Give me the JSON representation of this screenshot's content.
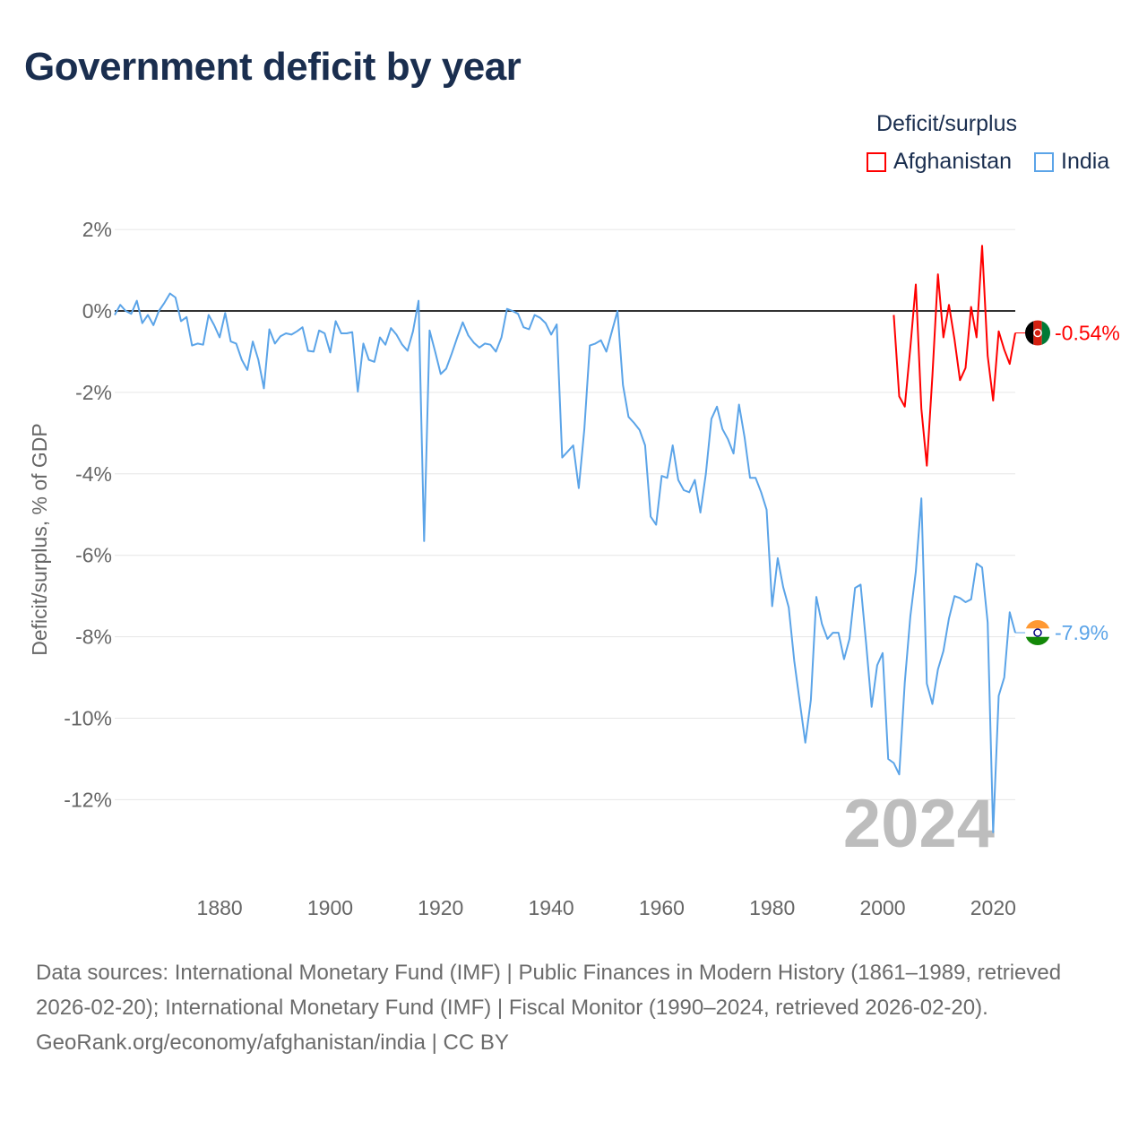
{
  "title": "Government deficit by year",
  "legend": {
    "title": "Deficit/surplus",
    "entries": [
      {
        "name": "Afghanistan",
        "color": "#ff0000"
      },
      {
        "name": "India",
        "color": "#5ba4e8"
      }
    ]
  },
  "footer": {
    "sources": "Data sources: International Monetary Fund (IMF) | Public Finances in Modern History (1861–1989, retrieved 2026-02-20); International Monetary Fund (IMF) | Fiscal Monitor (1990–2024, retrieved 2026-02-20).",
    "credit": "GeoRank.org/economy/afghanistan/india | CC BY"
  },
  "chart_data": {
    "type": "line",
    "title": "Government deficit by year",
    "xlabel": "",
    "ylabel": "Deficit/surplus, % of GDP",
    "xlim": [
      1861,
      2024
    ],
    "ylim": [
      -13,
      2.4
    ],
    "x_ticks": [
      1880,
      1900,
      1920,
      1940,
      1960,
      1980,
      2000,
      2020
    ],
    "x_tick_labels": [
      "1880",
      "1900",
      "1920",
      "1940",
      "1960",
      "1980",
      "2000",
      "2020"
    ],
    "y_ticks": [
      2,
      0,
      -2,
      -4,
      -6,
      -8,
      -10,
      -12
    ],
    "y_tick_labels": [
      "2%",
      "0%",
      "-2%",
      "-4%",
      "-6%",
      "-8%",
      "-10%",
      "-12%"
    ],
    "grid": true,
    "legend_position": "top-right",
    "year_watermark": "2024",
    "series": [
      {
        "name": "India",
        "color": "#5ba4e8",
        "start_year": 1861,
        "end_label": "-7.9%",
        "values": [
          -0.1,
          0.15,
          0,
          -0.07,
          0.25,
          -0.3,
          -0.1,
          -0.35,
          0,
          0.2,
          0.43,
          0.33,
          -0.25,
          -0.15,
          -0.85,
          -0.8,
          -0.83,
          -0.1,
          -0.35,
          -0.65,
          -0.05,
          -0.75,
          -0.8,
          -1.2,
          -1.45,
          -0.75,
          -1.2,
          -1.9,
          -0.45,
          -0.8,
          -0.62,
          -0.55,
          -0.58,
          -0.5,
          -0.4,
          -0.98,
          -1.0,
          -0.48,
          -0.55,
          -1.02,
          -0.25,
          -0.55,
          -0.55,
          -0.52,
          -1.98,
          -0.8,
          -1.2,
          -1.25,
          -0.65,
          -0.83,
          -0.42,
          -0.58,
          -0.82,
          -0.98,
          -0.5,
          0.25,
          -5.65,
          -0.48,
          -1.0,
          -1.55,
          -1.42,
          -1.05,
          -0.65,
          -0.28,
          -0.6,
          -0.78,
          -0.9,
          -0.8,
          -0.83,
          -1.0,
          -0.65,
          0.05,
          0,
          -0.07,
          -0.4,
          -0.45,
          -0.1,
          -0.17,
          -0.3,
          -0.58,
          -0.33,
          -3.6,
          -3.45,
          -3.3,
          -4.35,
          -2.9,
          -0.85,
          -0.8,
          -0.72,
          -1.0,
          -0.5,
          0,
          -1.82,
          -2.6,
          -2.75,
          -2.92,
          -3.3,
          -5.05,
          -5.25,
          -4.05,
          -4.1,
          -3.3,
          -4.15,
          -4.4,
          -4.45,
          -4.15,
          -4.95,
          -4.0,
          -2.65,
          -2.35,
          -2.9,
          -3.15,
          -3.5,
          -2.3,
          -3.1,
          -4.1,
          -4.1,
          -4.45,
          -4.88,
          -7.25,
          -6.07,
          -6.78,
          -7.28,
          -8.6,
          -9.6,
          -10.6,
          -9.55,
          -7.02,
          -7.68,
          -8.05,
          -7.9,
          -7.9,
          -8.55,
          -8.05,
          -6.8,
          -6.72,
          -8.15,
          -9.72,
          -8.7,
          -8.4,
          -11.0,
          -11.1,
          -11.38,
          -9.12,
          -7.5,
          -6.4,
          -4.6,
          -9.15,
          -9.65,
          -8.8,
          -8.35,
          -7.55,
          -7.0,
          -7.05,
          -7.15,
          -7.08,
          -6.2,
          -6.3,
          -7.65,
          -12.8,
          -9.45,
          -9.0,
          -7.4,
          -7.9
        ]
      },
      {
        "name": "Afghanistan",
        "color": "#ff0000",
        "start_year": 2002,
        "end_label": "-0.54%",
        "values": [
          -0.1,
          -2.1,
          -2.35,
          -0.9,
          0.65,
          -2.4,
          -3.8,
          -1.6,
          0.9,
          -0.65,
          0.15,
          -0.7,
          -1.7,
          -1.4,
          0.1,
          -0.65,
          1.6,
          -1.1,
          -2.2,
          -0.5,
          -0.95,
          -1.3,
          -0.54
        ]
      }
    ]
  }
}
